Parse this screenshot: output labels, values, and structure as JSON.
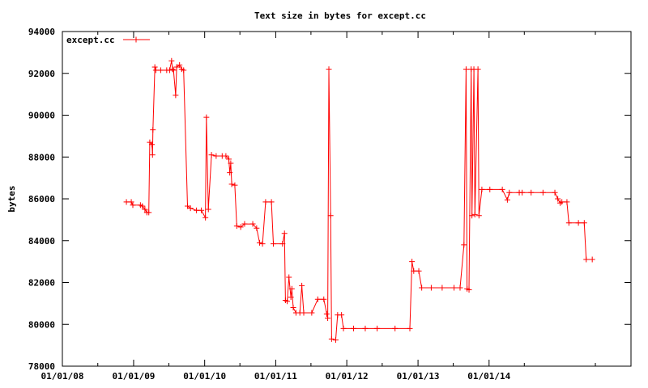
{
  "chart_data": {
    "type": "line",
    "title": "Text size in bytes for except.cc",
    "xlabel": "",
    "ylabel": "bytes",
    "ylim": [
      78000,
      94000
    ],
    "xlim": [
      "2008-01-01",
      "2015-12-31"
    ],
    "y_ticks": [
      78000,
      80000,
      82000,
      84000,
      86000,
      88000,
      90000,
      92000,
      94000
    ],
    "x_ticks": [
      "01/01/08",
      "01/01/09",
      "01/01/10",
      "01/01/11",
      "01/01/12",
      "01/01/13",
      "01/01/14"
    ],
    "x_tick_dates": [
      "2008-01-01",
      "2009-01-01",
      "2010-01-01",
      "2011-01-01",
      "2012-01-01",
      "2013-01-01",
      "2014-01-01"
    ],
    "grid": false,
    "legend_position": "top-left",
    "series": [
      {
        "name": "except.cc",
        "color": "#ff0000",
        "marker": "plus",
        "points": [
          [
            "2008-11-25",
            85850
          ],
          [
            "2008-12-20",
            85850
          ],
          [
            "2008-12-28",
            85700
          ],
          [
            "2009-02-05",
            85700
          ],
          [
            "2009-02-15",
            85650
          ],
          [
            "2009-02-28",
            85500
          ],
          [
            "2009-03-10",
            85350
          ],
          [
            "2009-03-20",
            85350
          ],
          [
            "2009-03-25",
            88700
          ],
          [
            "2009-04-05",
            88600
          ],
          [
            "2009-04-08",
            88100
          ],
          [
            "2009-04-10",
            89300
          ],
          [
            "2009-04-20",
            92300
          ],
          [
            "2009-04-25",
            92150
          ],
          [
            "2009-05-20",
            92150
          ],
          [
            "2009-06-20",
            92150
          ],
          [
            "2009-07-05",
            92150
          ],
          [
            "2009-07-15",
            92600
          ],
          [
            "2009-07-20",
            92200
          ],
          [
            "2009-07-25",
            92150
          ],
          [
            "2009-08-05",
            90950
          ],
          [
            "2009-08-10",
            92300
          ],
          [
            "2009-08-25",
            92400
          ],
          [
            "2009-09-05",
            92200
          ],
          [
            "2009-09-15",
            92150
          ],
          [
            "2009-10-05",
            85650
          ],
          [
            "2009-10-20",
            85550
          ],
          [
            "2009-11-20",
            85450
          ],
          [
            "2009-12-15",
            85450
          ],
          [
            "2010-01-05",
            85100
          ],
          [
            "2010-01-10",
            89900
          ],
          [
            "2010-01-20",
            85500
          ],
          [
            "2010-02-05",
            88100
          ],
          [
            "2010-03-01",
            88050
          ],
          [
            "2010-04-01",
            88050
          ],
          [
            "2010-04-20",
            88050
          ],
          [
            "2010-05-05",
            87900
          ],
          [
            "2010-05-10",
            87250
          ],
          [
            "2010-05-15",
            87700
          ],
          [
            "2010-05-20",
            86700
          ],
          [
            "2010-06-05",
            86650
          ],
          [
            "2010-06-15",
            84700
          ],
          [
            "2010-07-05",
            84650
          ],
          [
            "2010-07-25",
            84800
          ],
          [
            "2010-09-05",
            84800
          ],
          [
            "2010-09-25",
            84600
          ],
          [
            "2010-10-10",
            83900
          ],
          [
            "2010-10-25",
            83850
          ],
          [
            "2010-11-10",
            85850
          ],
          [
            "2010-12-10",
            85850
          ],
          [
            "2010-12-20",
            83850
          ],
          [
            "2011-02-05",
            83850
          ],
          [
            "2011-02-15",
            84350
          ],
          [
            "2011-02-20",
            81150
          ],
          [
            "2011-03-01",
            81100
          ],
          [
            "2011-03-10",
            82250
          ],
          [
            "2011-03-20",
            81300
          ],
          [
            "2011-03-25",
            81700
          ],
          [
            "2011-04-01",
            80800
          ],
          [
            "2011-04-15",
            80550
          ],
          [
            "2011-05-05",
            80550
          ],
          [
            "2011-05-15",
            81850
          ],
          [
            "2011-05-25",
            80550
          ],
          [
            "2011-07-05",
            80550
          ],
          [
            "2011-08-05",
            81200
          ],
          [
            "2011-09-05",
            81200
          ],
          [
            "2011-09-20",
            80500
          ],
          [
            "2011-09-25",
            80300
          ],
          [
            "2011-10-01",
            92200
          ],
          [
            "2011-10-10",
            85200
          ],
          [
            "2011-10-15",
            79300
          ],
          [
            "2011-11-05",
            79250
          ],
          [
            "2011-11-15",
            80450
          ],
          [
            "2011-12-05",
            80450
          ],
          [
            "2011-12-15",
            79800
          ],
          [
            "2012-02-05",
            79800
          ],
          [
            "2012-04-05",
            79800
          ],
          [
            "2012-06-05",
            79800
          ],
          [
            "2012-09-05",
            79800
          ],
          [
            "2012-11-20",
            79800
          ],
          [
            "2012-12-01",
            83000
          ],
          [
            "2012-12-10",
            82550
          ],
          [
            "2013-01-05",
            82550
          ],
          [
            "2013-01-20",
            81750
          ],
          [
            "2013-03-10",
            81750
          ],
          [
            "2013-05-05",
            81750
          ],
          [
            "2013-07-05",
            81750
          ],
          [
            "2013-08-05",
            81750
          ],
          [
            "2013-08-25",
            83800
          ],
          [
            "2013-09-05",
            92200
          ],
          [
            "2013-09-10",
            81700
          ],
          [
            "2013-09-20",
            81650
          ],
          [
            "2013-10-01",
            92200
          ],
          [
            "2013-10-05",
            85200
          ],
          [
            "2013-10-15",
            92200
          ],
          [
            "2013-10-20",
            85250
          ],
          [
            "2013-11-05",
            92200
          ],
          [
            "2013-11-10",
            85200
          ],
          [
            "2013-11-25",
            86450
          ],
          [
            "2014-01-05",
            86450
          ],
          [
            "2014-03-10",
            86450
          ],
          [
            "2014-04-05",
            85950
          ],
          [
            "2014-04-15",
            86300
          ],
          [
            "2014-06-05",
            86300
          ],
          [
            "2014-06-20",
            86300
          ],
          [
            "2014-08-05",
            86300
          ],
          [
            "2014-10-05",
            86300
          ],
          [
            "2014-12-05",
            86300
          ],
          [
            "2014-12-20",
            86000
          ],
          [
            "2015-01-01",
            85800
          ],
          [
            "2015-01-10",
            85850
          ],
          [
            "2015-02-05",
            85850
          ],
          [
            "2015-02-15",
            84850
          ],
          [
            "2015-04-05",
            84850
          ],
          [
            "2015-05-05",
            84850
          ],
          [
            "2015-05-15",
            83100
          ],
          [
            "2015-06-15",
            83100
          ]
        ]
      }
    ]
  }
}
